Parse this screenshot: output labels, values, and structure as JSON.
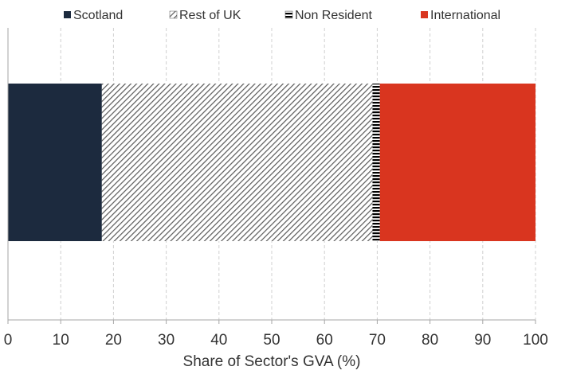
{
  "chart_data": {
    "type": "bar",
    "orientation": "horizontal",
    "stacked": true,
    "categories": [
      ""
    ],
    "series": [
      {
        "name": "Scotland",
        "values": [
          17.8
        ],
        "color": "#1c2a3e",
        "pattern": "solid"
      },
      {
        "name": "Rest of UK",
        "values": [
          51.3
        ],
        "color": "#595959",
        "pattern": "diagonal-hatch"
      },
      {
        "name": "Non Resident",
        "values": [
          1.4
        ],
        "color": "#000000",
        "pattern": "horizontal-stripes"
      },
      {
        "name": "International",
        "values": [
          29.5
        ],
        "color": "#d9351f",
        "pattern": "solid"
      }
    ],
    "xlabel": "Share of Sector's GVA (%)",
    "ylabel": "",
    "xlim": [
      0,
      100
    ],
    "xticks": [
      "0",
      "10",
      "20",
      "30",
      "40",
      "50",
      "60",
      "70",
      "80",
      "90",
      "100"
    ],
    "grid": "vertical dashed",
    "legend_position": "top"
  }
}
